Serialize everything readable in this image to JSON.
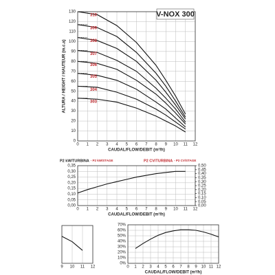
{
  "chart_data": [
    {
      "type": "line",
      "title": "V-NOX 300",
      "x_label": "CAUDAL/FLOW/DEBIT (m³/h)",
      "y_label": "ALTURA / HEIGHT / HAUTEUR (m.c.a)",
      "x": [
        0,
        2,
        4,
        6,
        8,
        9,
        10,
        11
      ],
      "xlim": [
        0,
        12
      ],
      "xticks": [
        0,
        1,
        2,
        3,
        4,
        5,
        6,
        7,
        8,
        9,
        10,
        11,
        12
      ],
      "ylim": [
        0,
        130
      ],
      "yticks": [
        0,
        10,
        20,
        30,
        40,
        50,
        60,
        70,
        80,
        90,
        100,
        110,
        120,
        130
      ],
      "grid": true,
      "label_color": "#c0282d",
      "series": [
        {
          "name": "310",
          "color": "#111111",
          "values": [
            130,
            127,
            116,
            99,
            76,
            61,
            45,
            27
          ]
        },
        {
          "name": "309",
          "color": "#111111",
          "values": [
            117,
            114,
            105,
            89,
            68,
            55,
            40,
            24
          ]
        },
        {
          "name": "308",
          "color": "#111111",
          "values": [
            104,
            101,
            93,
            80,
            61,
            49,
            36,
            22
          ]
        },
        {
          "name": "307",
          "color": "#111111",
          "values": [
            91,
            89,
            81,
            70,
            53,
            43,
            32,
            19
          ]
        },
        {
          "name": "306",
          "color": "#111111",
          "values": [
            80,
            78,
            72,
            61,
            47,
            38,
            28,
            17
          ]
        },
        {
          "name": "305",
          "color": "#111111",
          "values": [
            68,
            66,
            61,
            52,
            39,
            32,
            23,
            14
          ]
        },
        {
          "name": "304",
          "color": "#111111",
          "values": [
            55,
            54,
            49,
            42,
            32,
            26,
            19,
            12
          ]
        },
        {
          "name": "303",
          "color": "#111111",
          "values": [
            43,
            42,
            39,
            33,
            25,
            20,
            15,
            9
          ]
        }
      ]
    },
    {
      "type": "line",
      "x_label": "CAUDAL/FLOW/DEBIT (m³/h)",
      "y_label": "P2 kW/TURBINA",
      "y_label_stage": "- P2 kW/STAGE",
      "y2_label": "P2 CV/TURBINA",
      "y2_label_stage": "- P2 CV/STAGE",
      "x": [
        0,
        1,
        2,
        3,
        4,
        5,
        6,
        7,
        8,
        9,
        10,
        11
      ],
      "xlim": [
        0,
        12
      ],
      "xticks": [
        0,
        1,
        2,
        3,
        4,
        5,
        6,
        7,
        8,
        9,
        10,
        11,
        12
      ],
      "ylim": [
        0,
        0.35
      ],
      "yticks": [
        {
          "value": 0,
          "label": "0,00"
        },
        {
          "value": 0.05,
          "label": "0,05"
        },
        {
          "value": 0.1,
          "label": "0,10"
        },
        {
          "value": 0.15,
          "label": "0,15"
        },
        {
          "value": 0.2,
          "label": "0,20"
        },
        {
          "value": 0.25,
          "label": "0,25"
        },
        {
          "value": 0.3,
          "label": "0,30"
        },
        {
          "value": 0.35,
          "label": "0,35"
        }
      ],
      "y2lim": [
        0,
        0.5
      ],
      "y2ticks": [
        {
          "value": 0,
          "label": "0,00"
        },
        {
          "value": 0.05,
          "label": "0,05"
        },
        {
          "value": 0.1,
          "label": "0,10"
        },
        {
          "value": 0.15,
          "label": "0,15"
        },
        {
          "value": 0.2,
          "label": "0,20"
        },
        {
          "value": 0.25,
          "label": "0,25"
        },
        {
          "value": 0.3,
          "label": "0,30"
        },
        {
          "value": 0.35,
          "label": "0,35"
        },
        {
          "value": 0.4,
          "label": "0,40"
        },
        {
          "value": 0.45,
          "label": "0,45"
        },
        {
          "value": 0.5,
          "label": "0,50"
        }
      ],
      "grid": true,
      "label_color": "#c0282d",
      "series": [
        {
          "color": "#111111",
          "values": [
            0.11,
            0.14,
            0.165,
            0.19,
            0.21,
            0.23,
            0.25,
            0.265,
            0.28,
            0.29,
            0.3,
            0.3
          ]
        }
      ]
    },
    {
      "type": "line",
      "x": [
        9,
        10,
        11
      ],
      "xlim": [
        9,
        12
      ],
      "xticks": [
        9,
        10,
        11,
        12
      ],
      "ylim": [
        0,
        70
      ],
      "grid": true,
      "series": [
        {
          "color": "#111111",
          "values": [
            50,
            40,
            24
          ]
        }
      ]
    },
    {
      "type": "line",
      "x_label": "CAUDAL/FLOW/DEBIT (m³/h)",
      "x": [
        1,
        2,
        3,
        4,
        5,
        6,
        7,
        8,
        9,
        10,
        11,
        12
      ],
      "xlim": [
        0,
        12
      ],
      "xticks": [
        0,
        1,
        2,
        3,
        4,
        5,
        6,
        7,
        8,
        9,
        10,
        11,
        12
      ],
      "ylim": [
        0,
        70
      ],
      "yticks": [
        {
          "value": 0,
          "label": "0%"
        },
        {
          "value": 10,
          "label": "10%"
        },
        {
          "value": 20,
          "label": "20%"
        },
        {
          "value": 30,
          "label": "30%"
        },
        {
          "value": 40,
          "label": "40%"
        },
        {
          "value": 50,
          "label": "50%"
        },
        {
          "value": 60,
          "label": "60%"
        },
        {
          "value": 70,
          "label": "70%"
        }
      ],
      "grid": true,
      "series": [
        {
          "color": "#111111",
          "values": [
            27,
            36,
            44,
            51,
            56,
            59,
            61,
            61,
            60,
            57,
            53,
            48
          ]
        }
      ]
    }
  ]
}
